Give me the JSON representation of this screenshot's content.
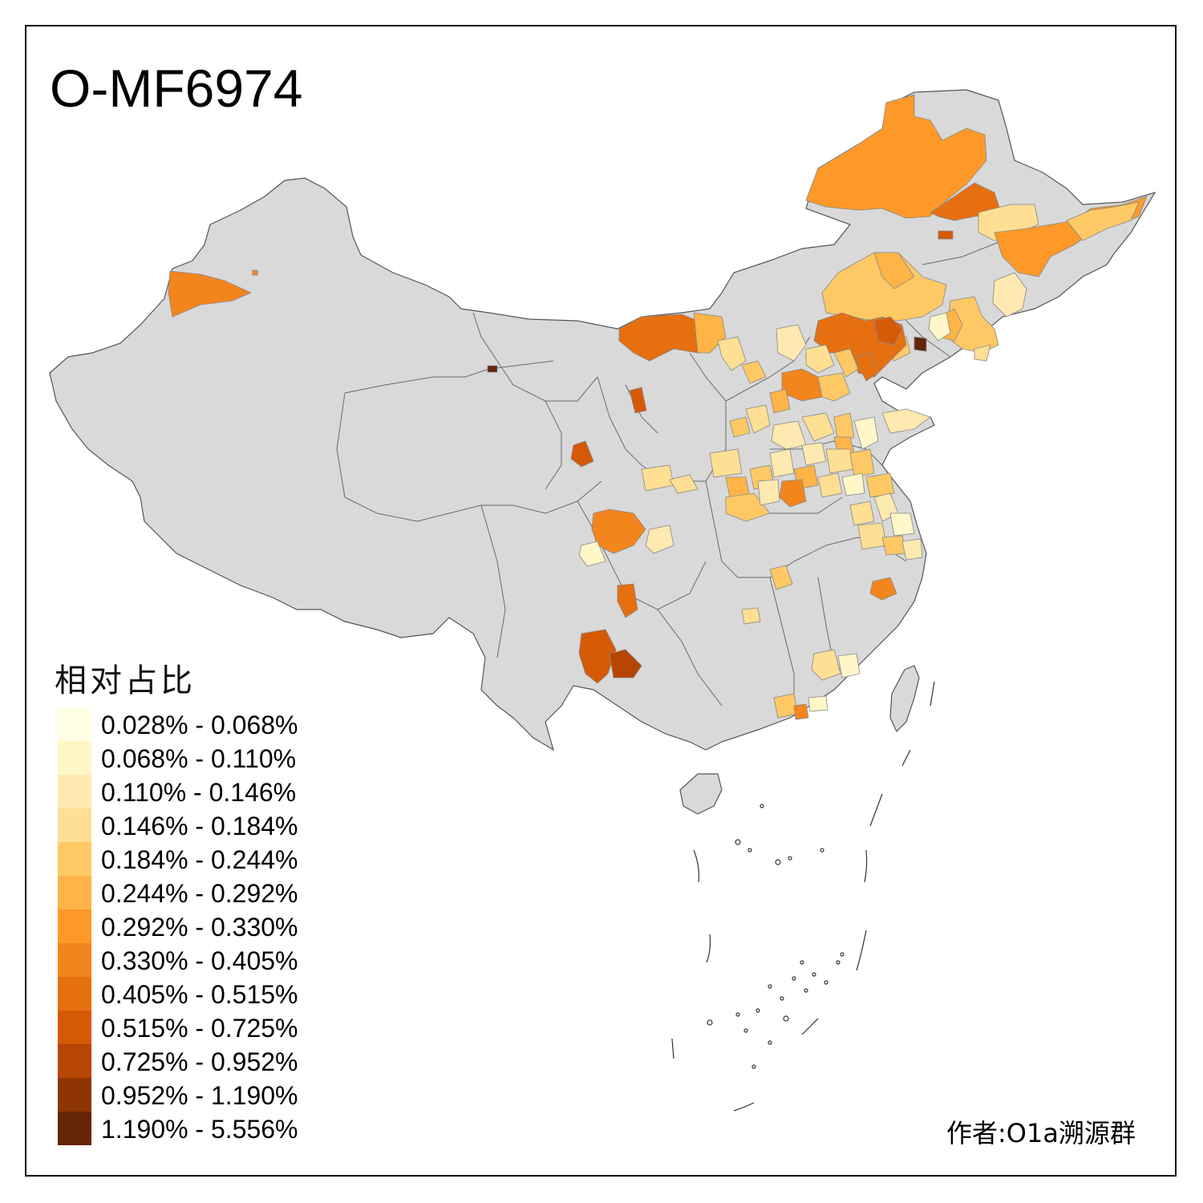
{
  "title": "O-MF6974",
  "legend": {
    "title": "相对占比",
    "items": [
      {
        "label": "0.028% - 0.068%",
        "color": "#ffffe5"
      },
      {
        "label": "0.068% - 0.110%",
        "color": "#fff7c8"
      },
      {
        "label": "0.110% - 0.146%",
        "color": "#fee9b0"
      },
      {
        "label": "0.146% - 0.184%",
        "color": "#fedf94"
      },
      {
        "label": "0.184% - 0.244%",
        "color": "#fec965"
      },
      {
        "label": "0.244% - 0.292%",
        "color": "#feb447"
      },
      {
        "label": "0.292% - 0.330%",
        "color": "#fe9929"
      },
      {
        "label": "0.330% - 0.405%",
        "color": "#f3851d"
      },
      {
        "label": "0.405% - 0.515%",
        "color": "#e66f10"
      },
      {
        "label": "0.515% - 0.725%",
        "color": "#d65a06"
      },
      {
        "label": "0.725% - 0.952%",
        "color": "#b64503"
      },
      {
        "label": "0.952% - 1.190%",
        "color": "#8f3504"
      },
      {
        "label": "1.190% - 5.556%",
        "color": "#662506"
      }
    ]
  },
  "credit": "作者:O1a溯源群",
  "colors": {
    "no_data": "#d9d9d9",
    "border": "#6b6b6b",
    "frame": "#000000"
  }
}
